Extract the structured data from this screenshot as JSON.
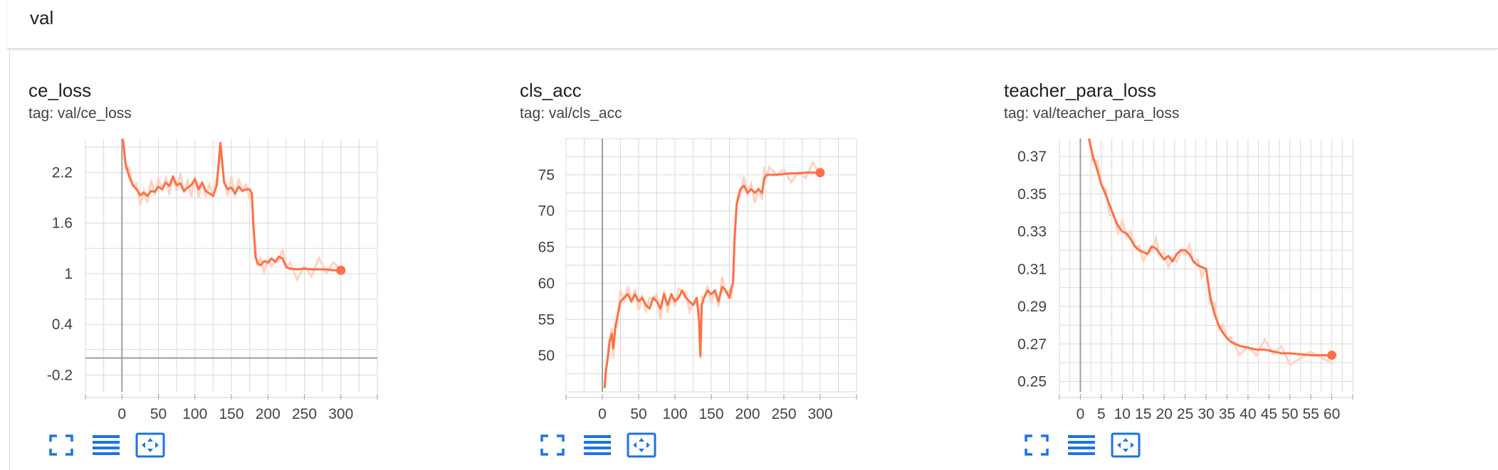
{
  "group": {
    "title": "val"
  },
  "theme": {
    "line_color": "#ff7043",
    "raw_color": "#ffd3c3",
    "grid_color": "#d9d9d9",
    "axis_color": "#9e9e9e",
    "icon_color": "#1a73e8"
  },
  "cards": [
    {
      "title": "ce_loss",
      "tag": "tag: val/ce_loss",
      "buttons": {
        "fullscreen": "fullscreen-icon",
        "data": "list-icon",
        "fit": "fit-domain-icon"
      }
    },
    {
      "title": "cls_acc",
      "tag": "tag: val/cls_acc",
      "buttons": {
        "fullscreen": "fullscreen-icon",
        "data": "list-icon",
        "fit": "fit-domain-icon"
      }
    },
    {
      "title": "teacher_para_loss",
      "tag": "tag: val/teacher_para_loss",
      "buttons": {
        "fullscreen": "fullscreen-icon",
        "data": "list-icon",
        "fit": "fit-domain-icon"
      }
    }
  ],
  "chart_data": [
    {
      "type": "line",
      "title": "ce_loss",
      "xlim": [
        -50,
        350
      ],
      "ylim": [
        -0.4,
        2.6
      ],
      "xticks": [
        0,
        50,
        100,
        150,
        200,
        250,
        300
      ],
      "yticks": [
        -0.2,
        0.4,
        1,
        1.6,
        2.2
      ],
      "x": [
        0,
        5,
        10,
        15,
        20,
        25,
        30,
        35,
        40,
        45,
        50,
        55,
        60,
        65,
        70,
        75,
        80,
        85,
        90,
        95,
        100,
        105,
        110,
        115,
        120,
        125,
        130,
        135,
        140,
        145,
        150,
        155,
        160,
        165,
        170,
        175,
        178,
        180,
        183,
        186,
        190,
        195,
        200,
        205,
        210,
        215,
        220,
        225,
        230,
        240,
        250,
        260,
        270,
        280,
        290,
        300
      ],
      "series": [
        {
          "values": [
            2.7,
            2.3,
            2.15,
            2.05,
            2.0,
            1.93,
            1.96,
            1.92,
            1.98,
            1.97,
            2.03,
            2.0,
            2.08,
            2.04,
            2.15,
            2.05,
            2.07,
            1.98,
            2.02,
            2.05,
            2.12,
            2.0,
            2.08,
            1.98,
            1.95,
            1.92,
            2.05,
            2.55,
            2.08,
            2.0,
            2.02,
            1.95,
            2.03,
            1.98,
            2.0,
            2.0,
            1.95,
            1.6,
            1.2,
            1.12,
            1.1,
            1.15,
            1.13,
            1.18,
            1.14,
            1.2,
            1.18,
            1.08,
            1.06,
            1.05,
            1.06,
            1.05,
            1.05,
            1.05,
            1.04,
            1.04
          ]
        }
      ]
    },
    {
      "type": "line",
      "title": "cls_acc",
      "xlim": [
        -50,
        350
      ],
      "ylim": [
        45,
        80
      ],
      "xticks": [
        0,
        50,
        100,
        150,
        200,
        250,
        300
      ],
      "yticks": [
        50,
        55,
        60,
        65,
        70,
        75
      ],
      "x": [
        3,
        5,
        8,
        10,
        13,
        15,
        18,
        20,
        25,
        30,
        35,
        40,
        45,
        50,
        55,
        60,
        65,
        70,
        75,
        80,
        85,
        90,
        95,
        100,
        105,
        110,
        115,
        120,
        125,
        130,
        133,
        135,
        137,
        140,
        145,
        150,
        155,
        160,
        165,
        170,
        175,
        178,
        180,
        182,
        185,
        190,
        195,
        200,
        205,
        210,
        215,
        220,
        223,
        226,
        230,
        240,
        250,
        260,
        270,
        280,
        290,
        300
      ],
      "series": [
        {
          "values": [
            45.5,
            48,
            50,
            52,
            53,
            51,
            54,
            55,
            57.5,
            58,
            58.5,
            57.5,
            58.5,
            57.5,
            58,
            57,
            56.5,
            58,
            57.5,
            56.5,
            58.5,
            57,
            58.5,
            57.5,
            58,
            59,
            58,
            57.5,
            57,
            58,
            55,
            50,
            57,
            58,
            59,
            58.5,
            59,
            57.5,
            59.5,
            59,
            58,
            59.5,
            60,
            66,
            71,
            73,
            73.5,
            72.5,
            73,
            72.5,
            73,
            72.5,
            74.5,
            75,
            75,
            75,
            75.1,
            75.2,
            75.2,
            75.3,
            75.3,
            75.3
          ]
        }
      ]
    },
    {
      "type": "line",
      "title": "teacher_para_loss",
      "xlim": [
        -5,
        65
      ],
      "ylim": [
        0.2445,
        0.3795
      ],
      "xticks": [
        0,
        5,
        10,
        15,
        20,
        25,
        30,
        35,
        40,
        45,
        50,
        55,
        60
      ],
      "yticks": [
        0.25,
        0.27,
        0.29,
        0.31,
        0.33,
        0.35,
        0.37
      ],
      "x": [
        2,
        3,
        4,
        5,
        6,
        7,
        8,
        9,
        10,
        11,
        12,
        13,
        14,
        15,
        16,
        17,
        18,
        19,
        20,
        21,
        22,
        23,
        24,
        25,
        26,
        27,
        28,
        29,
        30,
        31,
        32,
        33,
        34,
        35,
        36,
        38,
        40,
        42,
        44,
        46,
        48,
        50,
        55,
        60
      ],
      "series": [
        {
          "values": [
            0.38,
            0.37,
            0.363,
            0.355,
            0.35,
            0.344,
            0.338,
            0.333,
            0.33,
            0.329,
            0.326,
            0.322,
            0.32,
            0.319,
            0.318,
            0.322,
            0.321,
            0.318,
            0.315,
            0.317,
            0.314,
            0.318,
            0.32,
            0.32,
            0.318,
            0.314,
            0.312,
            0.311,
            0.31,
            0.295,
            0.286,
            0.28,
            0.276,
            0.273,
            0.271,
            0.269,
            0.268,
            0.267,
            0.267,
            0.266,
            0.265,
            0.265,
            0.264,
            0.264
          ]
        }
      ]
    }
  ]
}
